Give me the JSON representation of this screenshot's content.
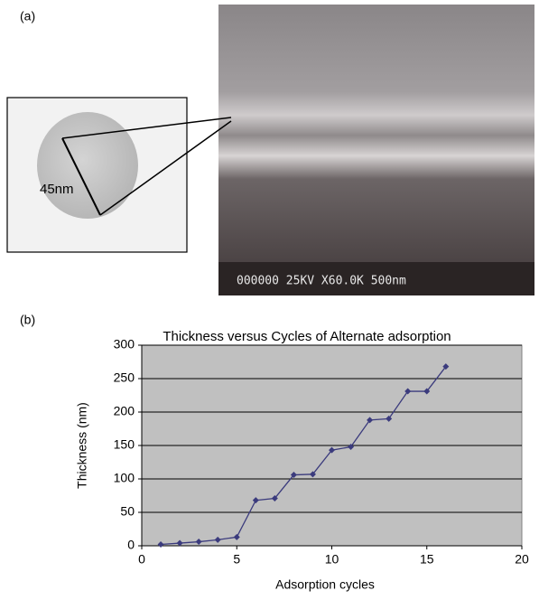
{
  "panel_labels": [
    "(a)",
    "(b)"
  ],
  "inset_label": "45nm",
  "sem_caption": "000000 25KV X60.0K  500nm",
  "chart_data": {
    "type": "line",
    "title": "Thickness versus Cycles of Alternate adsorption",
    "x_label": "Adsorption cycles",
    "y_label": "Thickness (nm)",
    "x": [
      1,
      2,
      3,
      4,
      5,
      6,
      7,
      8,
      9,
      10,
      11,
      12,
      13,
      14,
      15,
      16
    ],
    "values": [
      2,
      4,
      6,
      9,
      13,
      68,
      71,
      106,
      107,
      143,
      148,
      188,
      190,
      231,
      231,
      268
    ],
    "color": "#3b3b7d",
    "xlim": [
      0,
      20
    ],
    "xticks": [
      0,
      5,
      10,
      15,
      20
    ],
    "ylim": [
      0,
      300
    ],
    "yticks": [
      0,
      50,
      100,
      150,
      200,
      250,
      300
    ],
    "grid": true
  }
}
